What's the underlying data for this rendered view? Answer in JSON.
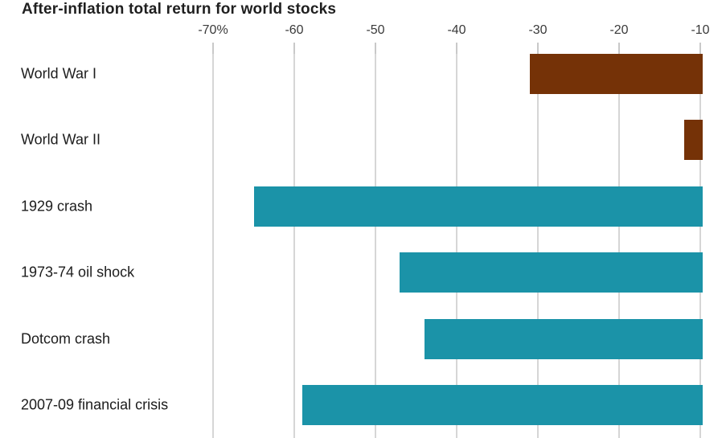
{
  "title": "After-inflation total return for world stocks",
  "chart_data": {
    "type": "bar",
    "orientation": "horizontal",
    "title": "After-inflation total return for world stocks",
    "categories": [
      "World War I",
      "World War II",
      "1929 crash",
      "1973-74 oil shock",
      "Dotcom crash",
      "2007-09 financial crisis"
    ],
    "values": [
      -31,
      -12,
      -65,
      -47,
      -44,
      -59
    ],
    "value_unit": "%",
    "x_ticks": [
      -70,
      -60,
      -50,
      -40,
      -30,
      -20,
      -10
    ],
    "x_tick_labels": [
      "-70%",
      "-60",
      "-50",
      "-40",
      "-30",
      "-20",
      "-10"
    ],
    "xlim": [
      -70,
      -10
    ],
    "grid": "vertical gridlines on, no horizontal axis line",
    "legend": "none",
    "bars_clipped_at_right_edge": true,
    "bar_colors": [
      "#753207",
      "#753207",
      "#1B93A8",
      "#1B93A8",
      "#1B93A8",
      "#1B93A8"
    ],
    "colors": {
      "war_bar": "#753207",
      "crash_bar": "#1B93A8",
      "gridline": "#D6D6D6",
      "title_text": "#1F1F1F",
      "category_text": "#1C1C1C",
      "tick_text": "#3A3A3A",
      "background": "#FFFFFF"
    }
  }
}
